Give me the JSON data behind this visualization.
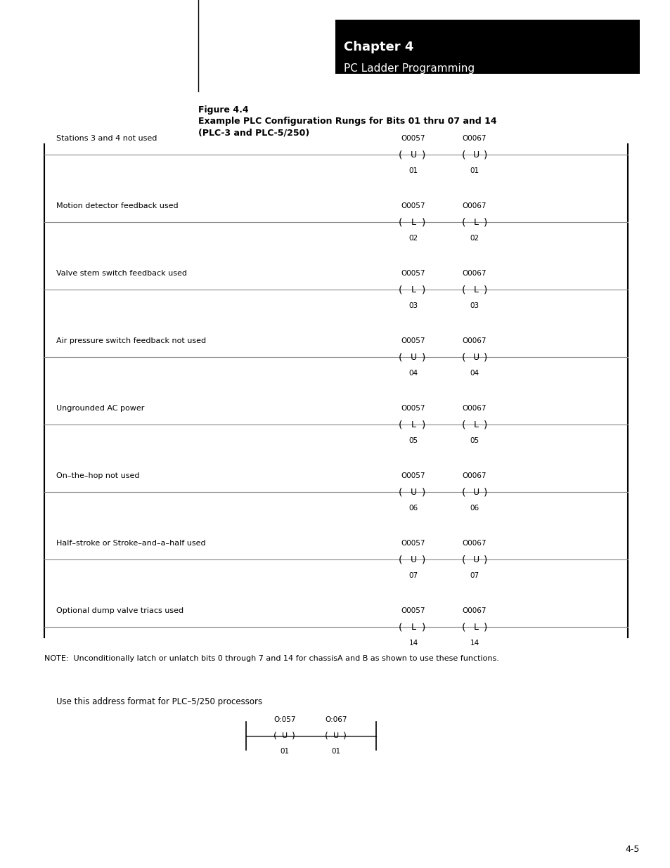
{
  "page_bg": "#ffffff",
  "chapter_box_color": "#000000",
  "chapter_title": "Chapter 4",
  "chapter_subtitle": "PC Ladder Programming",
  "fig_title_line1": "Figure 4.4",
  "fig_title_line2": "Example PLC Configuration Rungs for Bits 01 thru 07 and 14",
  "fig_title_line3": "(PLC-3 and PLC-5/250)",
  "rungs": [
    {
      "label": "Stations 3 and 4 not used",
      "addr1": "O0057",
      "coil1": "U",
      "bit1": "01",
      "addr2": "O0067",
      "coil2": "U",
      "bit2": "01"
    },
    {
      "label": "Motion detector feedback used",
      "addr1": "O0057",
      "coil1": "L",
      "bit1": "02",
      "addr2": "O0067",
      "coil2": "L",
      "bit2": "02"
    },
    {
      "label": "Valve stem switch feedback used",
      "addr1": "O0057",
      "coil1": "L",
      "bit1": "03",
      "addr2": "O0067",
      "coil2": "L",
      "bit2": "03"
    },
    {
      "label": "Air pressure switch feedback not used",
      "addr1": "O0057",
      "coil1": "U",
      "bit1": "04",
      "addr2": "O0067",
      "coil2": "U",
      "bit2": "04"
    },
    {
      "label": "Ungrounded AC power",
      "addr1": "O0057",
      "coil1": "L",
      "bit1": "05",
      "addr2": "O0067",
      "coil2": "L",
      "bit2": "05"
    },
    {
      "label": "On–the–hop not used",
      "addr1": "O0057",
      "coil1": "U",
      "bit1": "06",
      "addr2": "O0067",
      "coil2": "U",
      "bit2": "06"
    },
    {
      "label": "Half–stroke or Stroke–and–a–half used",
      "addr1": "O0057",
      "coil1": "U",
      "bit1": "07",
      "addr2": "O0067",
      "coil2": "U",
      "bit2": "07"
    },
    {
      "label": "Optional dump valve triacs used",
      "addr1": "O0057",
      "coil1": "L",
      "bit1": "14",
      "addr2": "O0067",
      "coil2": "L",
      "bit2": "14"
    }
  ],
  "note_text": "NOTE:  Unconditionally latch or unlatch bits 0 through 7 and 14 for chassisA and B as shown to use these functions.",
  "bottom_label": "Use this address format for PLC–5/250 processors",
  "bottom_addr1": "O:057",
  "bottom_coil1": "U",
  "bottom_bit1": "01",
  "bottom_addr2": "O:067",
  "bottom_coil2": "U",
  "bottom_bit2": "01",
  "page_number": "4-5"
}
